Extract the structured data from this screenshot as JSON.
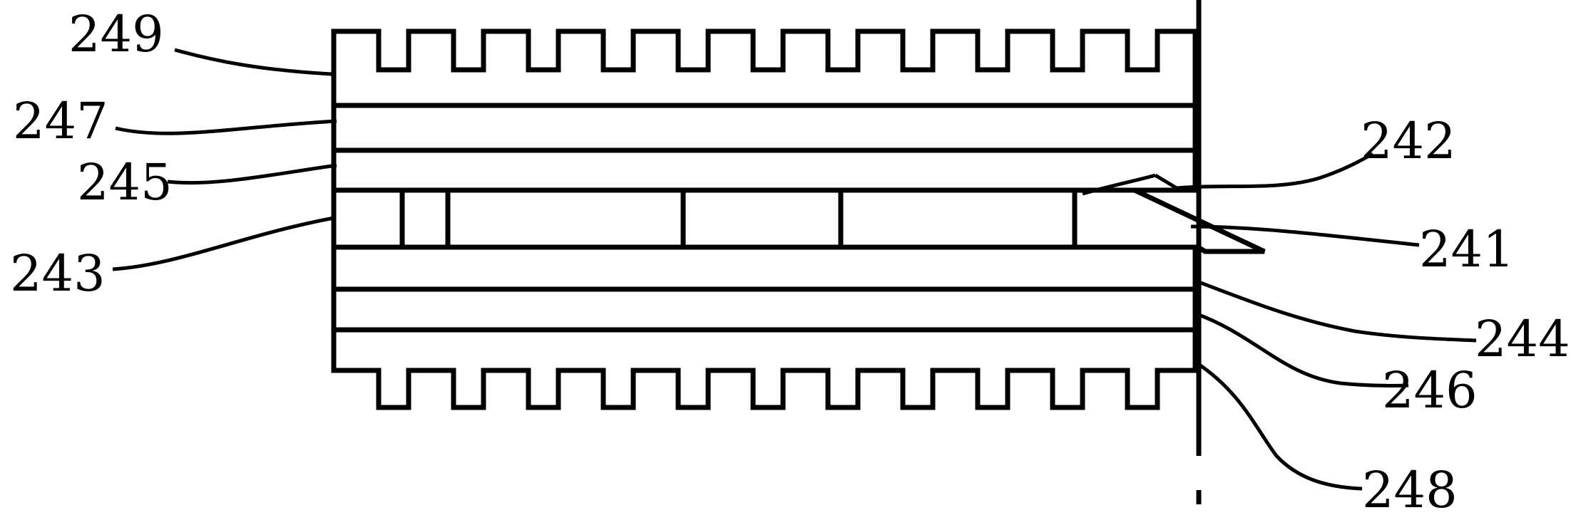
{
  "diagram": {
    "callouts": [
      {
        "id": "249",
        "label": "249"
      },
      {
        "id": "247",
        "label": "247"
      },
      {
        "id": "245",
        "label": "245"
      },
      {
        "id": "243",
        "label": "243"
      },
      {
        "id": "242",
        "label": "242"
      },
      {
        "id": "241",
        "label": "241"
      },
      {
        "id": "244",
        "label": "244"
      },
      {
        "id": "246",
        "label": "246"
      },
      {
        "id": "248",
        "label": "248"
      }
    ]
  }
}
